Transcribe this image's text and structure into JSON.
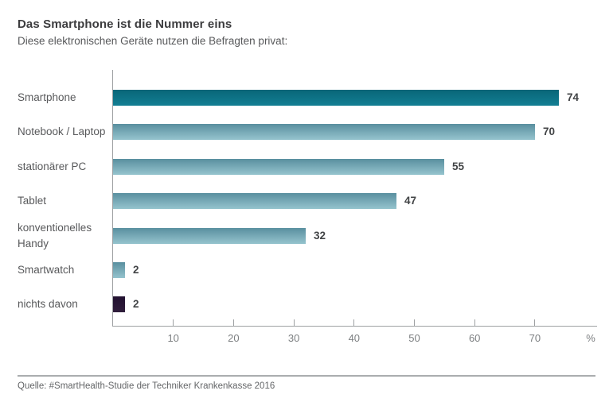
{
  "chart_data": {
    "type": "bar",
    "orientation": "horizontal",
    "title": "Das Smartphone ist die Nummer eins",
    "subtitle": "Diese elektronischen Geräte nutzen die Befragten privat:",
    "categories": [
      "Smartphone",
      "Notebook / Laptop",
      "stationärer PC",
      "Tablet",
      "konventionelles Handy",
      "Smartwatch",
      "nichts davon"
    ],
    "values": [
      74,
      70,
      55,
      47,
      32,
      2,
      2
    ],
    "value_labels": [
      "74",
      "70",
      "55",
      "47",
      "32",
      "2",
      "2"
    ],
    "bar_styles": [
      "primary",
      "light",
      "light",
      "light",
      "light",
      "light",
      "dark"
    ],
    "xlim": [
      0,
      80
    ],
    "x_ticks": [
      10,
      20,
      30,
      40,
      50,
      60,
      70
    ],
    "x_tick_labels": [
      "10",
      "20",
      "30",
      "40",
      "50",
      "60",
      "70"
    ],
    "x_unit_label": "%",
    "grid": false,
    "legend": "none",
    "source": "Quelle: #SmartHealth-Studie der Techniker Krankenkasse 2016",
    "colors": {
      "primary_top": "#096678",
      "primary_bottom": "#127e93",
      "light_top": "#598f9f",
      "light_bottom": "#96c4ce",
      "dark_top": "#221130",
      "dark_bottom": "#2f1d3b",
      "axis": "#9ea1a3",
      "tick_label": "#7c7f81",
      "category_label": "#58595b",
      "value_label": "#424446",
      "title": "#3c3c3e",
      "subtitle": "#58595b",
      "source": "#646668",
      "divider": "#aaadaf",
      "background": "#ffffff"
    }
  }
}
